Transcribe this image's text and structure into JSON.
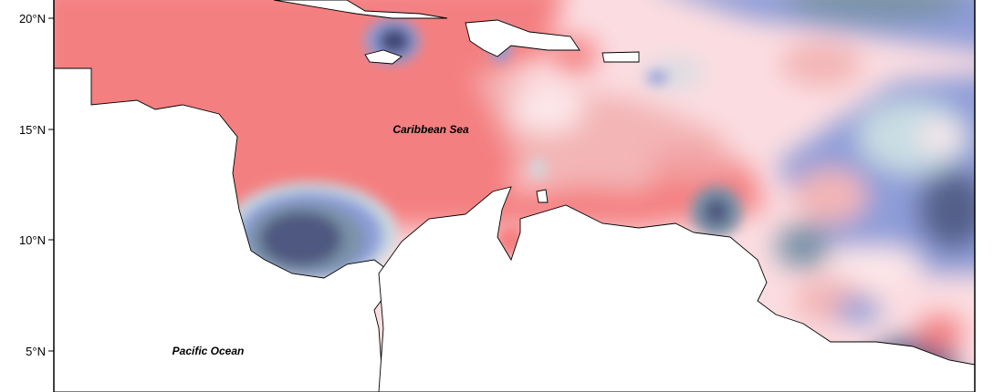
{
  "map": {
    "lat_labels": [
      "20°N",
      "15°N",
      "10°N",
      "5°N"
    ],
    "place_labels": [
      "Caribbean Sea",
      "Pacific Ocean"
    ]
  }
}
